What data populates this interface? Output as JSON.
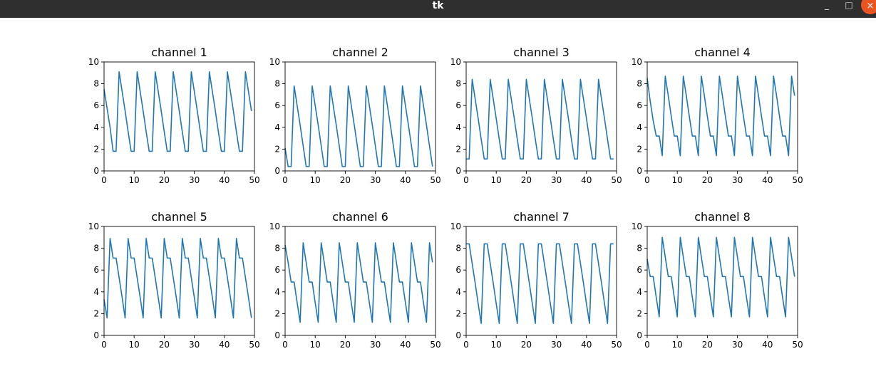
{
  "window": {
    "title": "tk",
    "minimize_glyph": "_",
    "maximize_glyph": "□",
    "close_glyph": "×",
    "close_color": "#e95420"
  },
  "line_color": "#1f77b4",
  "chart_data": [
    {
      "type": "line",
      "title": "channel 1",
      "xlim": [
        0,
        50
      ],
      "ylim": [
        0,
        10
      ],
      "xticks": [
        0,
        10,
        20,
        30,
        40,
        50
      ],
      "yticks": [
        0,
        2,
        4,
        6,
        8,
        10
      ],
      "x": [
        0,
        2,
        3,
        4,
        5,
        6,
        7,
        8,
        9,
        10,
        11,
        12,
        13,
        14,
        15,
        16,
        17,
        18,
        19,
        20,
        21,
        22,
        23,
        24,
        25,
        26,
        27,
        28,
        29,
        30,
        31,
        32,
        33,
        34,
        35,
        36,
        37,
        38,
        39,
        40,
        41,
        42,
        43,
        44,
        45,
        46,
        47,
        48,
        49
      ],
      "y": [
        7.5,
        4.0,
        1.8,
        1.8,
        9.1,
        7.3,
        5.5,
        3.6,
        1.8,
        1.8,
        9.1,
        7.3,
        5.5,
        3.6,
        1.8,
        1.8,
        9.1,
        7.3,
        5.5,
        3.6,
        1.8,
        1.8,
        9.1,
        7.3,
        5.5,
        3.6,
        1.8,
        1.8,
        9.1,
        7.3,
        5.5,
        3.6,
        1.8,
        1.8,
        9.1,
        7.3,
        5.5,
        3.6,
        1.8,
        1.8,
        9.1,
        7.3,
        5.5,
        3.6,
        1.8,
        1.8,
        9.1,
        7.3,
        5.5
      ]
    },
    {
      "type": "line",
      "title": "channel 2",
      "xlim": [
        0,
        50
      ],
      "ylim": [
        0,
        10
      ],
      "xticks": [
        0,
        10,
        20,
        30,
        40,
        50
      ],
      "yticks": [
        0,
        2,
        4,
        6,
        8,
        10
      ],
      "x": [
        0,
        1,
        2,
        3,
        4,
        5,
        6,
        7,
        8,
        9,
        10,
        11,
        12,
        13,
        14,
        15,
        16,
        17,
        18,
        19,
        20,
        21,
        22,
        23,
        24,
        25,
        26,
        27,
        28,
        29,
        30,
        31,
        32,
        33,
        34,
        35,
        36,
        37,
        38,
        39,
        40,
        41,
        42,
        43,
        44,
        45,
        46,
        47,
        48,
        49
      ],
      "y": [
        2.1,
        0.4,
        0.4,
        7.8,
        6.0,
        4.2,
        2.3,
        0.4,
        0.4,
        7.8,
        6.0,
        4.2,
        2.3,
        0.4,
        0.4,
        7.8,
        6.0,
        4.2,
        2.3,
        0.4,
        0.4,
        7.8,
        6.0,
        4.2,
        2.3,
        0.4,
        0.4,
        7.8,
        6.0,
        4.2,
        2.3,
        0.4,
        0.4,
        7.8,
        6.0,
        4.2,
        2.3,
        0.4,
        0.4,
        7.8,
        6.0,
        4.2,
        2.3,
        0.4,
        0.4,
        7.8,
        6.0,
        4.2,
        2.3,
        0.4
      ]
    },
    {
      "type": "line",
      "title": "channel 3",
      "xlim": [
        0,
        50
      ],
      "ylim": [
        0,
        10
      ],
      "xticks": [
        0,
        10,
        20,
        30,
        40,
        50
      ],
      "yticks": [
        0,
        2,
        4,
        6,
        8,
        10
      ],
      "x": [
        0,
        1,
        2,
        3,
        4,
        5,
        6,
        7,
        8,
        9,
        10,
        11,
        12,
        13,
        14,
        15,
        16,
        17,
        18,
        19,
        20,
        21,
        22,
        23,
        24,
        25,
        26,
        27,
        28,
        29,
        30,
        31,
        32,
        33,
        34,
        35,
        36,
        37,
        38,
        39,
        40,
        41,
        42,
        43,
        44,
        45,
        46,
        47,
        48,
        49
      ],
      "y": [
        1.1,
        1.1,
        8.4,
        6.6,
        4.8,
        2.9,
        1.1,
        1.1,
        8.4,
        6.6,
        4.8,
        2.9,
        1.1,
        1.1,
        8.4,
        6.6,
        4.8,
        2.9,
        1.1,
        1.1,
        8.4,
        6.6,
        4.8,
        2.9,
        1.1,
        1.1,
        8.4,
        6.6,
        4.8,
        2.9,
        1.1,
        1.1,
        8.4,
        6.6,
        4.8,
        2.9,
        1.1,
        1.1,
        8.4,
        6.6,
        4.8,
        2.9,
        1.1,
        1.1,
        8.4,
        6.6,
        4.8,
        2.9,
        1.1,
        1.1
      ]
    },
    {
      "type": "line",
      "title": "channel 4",
      "xlim": [
        0,
        50
      ],
      "ylim": [
        0,
        10
      ],
      "xticks": [
        0,
        10,
        20,
        30,
        40,
        50
      ],
      "yticks": [
        0,
        2,
        4,
        6,
        8,
        10
      ],
      "x": [
        0,
        1,
        2,
        3,
        4,
        5,
        6,
        7,
        8,
        9,
        10,
        11,
        12,
        13,
        14,
        15,
        16,
        17,
        18,
        19,
        20,
        21,
        22,
        23,
        24,
        25,
        26,
        27,
        28,
        29,
        30,
        31,
        32,
        33,
        34,
        35,
        36,
        37,
        38,
        39,
        40,
        41,
        42,
        43,
        44,
        45,
        46,
        47,
        48,
        49
      ],
      "y": [
        8.5,
        6.4,
        4.6,
        3.2,
        3.2,
        1.4,
        8.7,
        6.9,
        5.0,
        3.2,
        3.2,
        1.4,
        8.7,
        6.9,
        5.0,
        3.2,
        3.2,
        1.4,
        8.7,
        6.9,
        5.0,
        3.2,
        3.2,
        1.4,
        8.7,
        6.9,
        5.0,
        3.2,
        3.2,
        1.4,
        8.7,
        6.9,
        5.0,
        3.2,
        3.2,
        1.4,
        8.7,
        6.9,
        5.0,
        3.2,
        3.2,
        1.4,
        8.7,
        6.9,
        5.0,
        3.2,
        3.2,
        1.4,
        8.7,
        6.9
      ]
    },
    {
      "type": "line",
      "title": "channel 5",
      "xlim": [
        0,
        50
      ],
      "ylim": [
        0,
        10
      ],
      "xticks": [
        0,
        10,
        20,
        30,
        40,
        50
      ],
      "yticks": [
        0,
        2,
        4,
        6,
        8,
        10
      ],
      "x": [
        0,
        1,
        2,
        3,
        4,
        5,
        6,
        7,
        8,
        9,
        10,
        11,
        12,
        13,
        14,
        15,
        16,
        17,
        18,
        19,
        20,
        21,
        22,
        23,
        24,
        25,
        26,
        27,
        28,
        29,
        30,
        31,
        32,
        33,
        34,
        35,
        36,
        37,
        38,
        39,
        40,
        41,
        42,
        43,
        44,
        45,
        46,
        47,
        48,
        49
      ],
      "y": [
        3.3,
        1.6,
        8.9,
        7.1,
        7.1,
        5.3,
        3.5,
        1.6,
        8.9,
        7.1,
        7.1,
        5.3,
        3.5,
        1.6,
        8.9,
        7.1,
        7.1,
        5.3,
        3.5,
        1.6,
        8.9,
        7.1,
        7.1,
        5.3,
        3.5,
        1.6,
        8.9,
        7.1,
        7.1,
        5.3,
        3.5,
        1.6,
        8.9,
        7.1,
        7.1,
        5.3,
        3.5,
        1.6,
        8.9,
        7.1,
        7.1,
        5.3,
        3.5,
        1.6,
        8.9,
        7.1,
        7.1,
        5.3,
        3.5,
        1.6
      ]
    },
    {
      "type": "line",
      "title": "channel 6",
      "xlim": [
        0,
        50
      ],
      "ylim": [
        0,
        10
      ],
      "xticks": [
        0,
        10,
        20,
        30,
        40,
        50
      ],
      "yticks": [
        0,
        2,
        4,
        6,
        8,
        10
      ],
      "x": [
        0,
        1,
        2,
        3,
        4,
        5,
        6,
        7,
        8,
        9,
        10,
        11,
        12,
        13,
        14,
        15,
        16,
        17,
        18,
        19,
        20,
        21,
        22,
        23,
        24,
        25,
        26,
        27,
        28,
        29,
        30,
        31,
        32,
        33,
        34,
        35,
        36,
        37,
        38,
        39,
        40,
        41,
        42,
        43,
        44,
        45,
        46,
        47,
        48,
        49
      ],
      "y": [
        8.3,
        6.7,
        4.9,
        4.9,
        3.0,
        1.2,
        8.5,
        6.7,
        4.9,
        4.9,
        3.0,
        1.2,
        8.5,
        6.7,
        4.9,
        4.9,
        3.0,
        1.2,
        8.5,
        6.7,
        4.9,
        4.9,
        3.0,
        1.2,
        8.5,
        6.7,
        4.9,
        4.9,
        3.0,
        1.2,
        8.5,
        6.7,
        4.9,
        4.9,
        3.0,
        1.2,
        8.5,
        6.7,
        4.9,
        4.9,
        3.0,
        1.2,
        8.5,
        6.7,
        4.9,
        4.9,
        3.0,
        1.2,
        8.5,
        6.7
      ]
    },
    {
      "type": "line",
      "title": "channel 7",
      "xlim": [
        0,
        50
      ],
      "ylim": [
        0,
        10
      ],
      "xticks": [
        0,
        10,
        20,
        30,
        40,
        50
      ],
      "yticks": [
        0,
        2,
        4,
        6,
        8,
        10
      ],
      "x": [
        0,
        1,
        2,
        3,
        4,
        5,
        6,
        7,
        8,
        9,
        10,
        11,
        12,
        13,
        14,
        15,
        16,
        17,
        18,
        19,
        20,
        21,
        22,
        23,
        24,
        25,
        26,
        27,
        28,
        29,
        30,
        31,
        32,
        33,
        34,
        35,
        36,
        37,
        38,
        39,
        40,
        41,
        42,
        43,
        44,
        45,
        46,
        47,
        48,
        49
      ],
      "y": [
        8.4,
        8.4,
        6.6,
        4.8,
        2.9,
        1.1,
        8.4,
        8.4,
        6.6,
        4.8,
        2.9,
        1.1,
        8.4,
        8.4,
        6.6,
        4.8,
        2.9,
        1.1,
        8.4,
        8.4,
        6.6,
        4.8,
        2.9,
        1.1,
        8.4,
        8.4,
        6.6,
        4.8,
        2.9,
        1.1,
        8.4,
        8.4,
        6.6,
        4.8,
        2.9,
        1.1,
        8.4,
        8.4,
        6.6,
        4.8,
        2.9,
        1.1,
        8.4,
        8.4,
        6.6,
        4.8,
        2.9,
        1.1,
        8.4,
        8.4
      ]
    },
    {
      "type": "line",
      "title": "channel 8",
      "xlim": [
        0,
        50
      ],
      "ylim": [
        0,
        10
      ],
      "xticks": [
        0,
        10,
        20,
        30,
        40,
        50
      ],
      "yticks": [
        0,
        2,
        4,
        6,
        8,
        10
      ],
      "x": [
        0,
        1,
        2,
        3,
        4,
        5,
        6,
        7,
        8,
        9,
        10,
        11,
        12,
        13,
        14,
        15,
        16,
        17,
        18,
        19,
        20,
        21,
        22,
        23,
        24,
        25,
        26,
        27,
        28,
        29,
        30,
        31,
        32,
        33,
        34,
        35,
        36,
        37,
        38,
        39,
        40,
        41,
        42,
        43,
        44,
        45,
        46,
        47,
        48,
        49
      ],
      "y": [
        7.0,
        5.4,
        5.4,
        3.5,
        1.7,
        9.0,
        7.2,
        5.4,
        5.4,
        3.5,
        1.7,
        9.0,
        7.2,
        5.4,
        5.4,
        3.5,
        1.7,
        9.0,
        7.2,
        5.4,
        5.4,
        3.5,
        1.7,
        9.0,
        7.2,
        5.4,
        5.4,
        3.5,
        1.7,
        9.0,
        7.2,
        5.4,
        5.4,
        3.5,
        1.7,
        9.0,
        7.2,
        5.4,
        5.4,
        3.5,
        1.7,
        9.0,
        7.2,
        5.4,
        5.4,
        3.5,
        1.7,
        9.0,
        7.2,
        5.4
      ]
    }
  ]
}
